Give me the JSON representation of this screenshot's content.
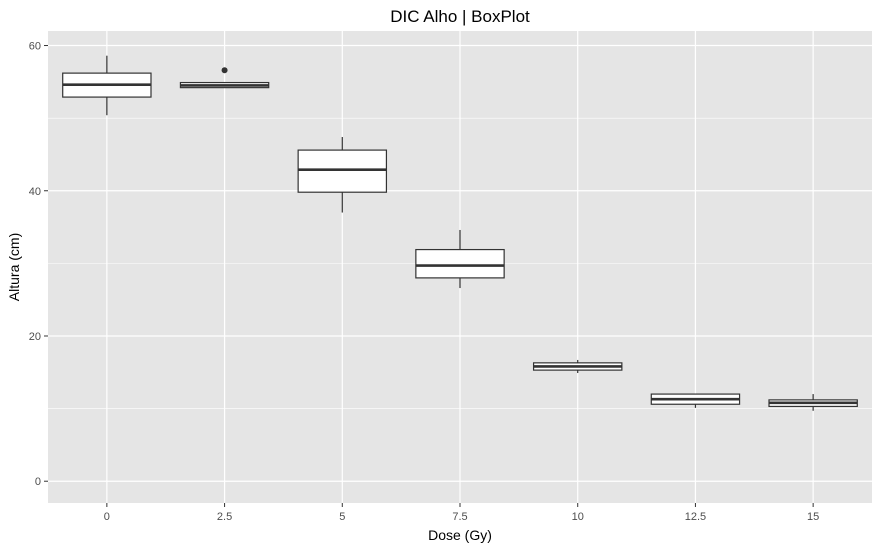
{
  "chart_data": {
    "type": "boxplot",
    "title": "DIC Alho | BoxPlot",
    "xlabel": "Dose (Gy)",
    "ylabel": "Altura (cm)",
    "categories": [
      "0",
      "2.5",
      "5",
      "7.5",
      "10",
      "12.5",
      "15"
    ],
    "ylim": [
      -3,
      62
    ],
    "yticks": [
      0,
      20,
      40,
      60
    ],
    "yticks_labels": [
      "0",
      "20",
      "40",
      "60"
    ],
    "grid": true,
    "boxes": [
      {
        "category": "0",
        "whisker_low": 50.4,
        "q1": 52.9,
        "median": 54.6,
        "q3": 56.2,
        "whisker_high": 58.6,
        "outliers": []
      },
      {
        "category": "2.5",
        "whisker_low": 54.2,
        "q1": 54.2,
        "median": 54.5,
        "q3": 54.9,
        "whisker_high": 54.9,
        "outliers": [
          56.6
        ]
      },
      {
        "category": "5",
        "whisker_low": 37.0,
        "q1": 39.8,
        "median": 42.9,
        "q3": 45.6,
        "whisker_high": 47.4,
        "outliers": []
      },
      {
        "category": "7.5",
        "whisker_low": 26.6,
        "q1": 28.0,
        "median": 29.7,
        "q3": 31.9,
        "whisker_high": 34.6,
        "outliers": []
      },
      {
        "category": "10",
        "whisker_low": 14.9,
        "q1": 15.3,
        "median": 15.8,
        "q3": 16.3,
        "whisker_high": 16.7,
        "outliers": []
      },
      {
        "category": "12.5",
        "whisker_low": 10.1,
        "q1": 10.6,
        "median": 11.3,
        "q3": 12.0,
        "whisker_high": 12.0,
        "outliers": []
      },
      {
        "category": "15",
        "whisker_low": 9.7,
        "q1": 10.3,
        "median": 10.8,
        "q3": 11.2,
        "whisker_high": 12.0,
        "outliers": []
      }
    ],
    "colors": {
      "panel_background": "#e5e5e5",
      "grid_major": "#ffffff",
      "box_fill": "#ffffff",
      "box_stroke": "#333333"
    }
  }
}
